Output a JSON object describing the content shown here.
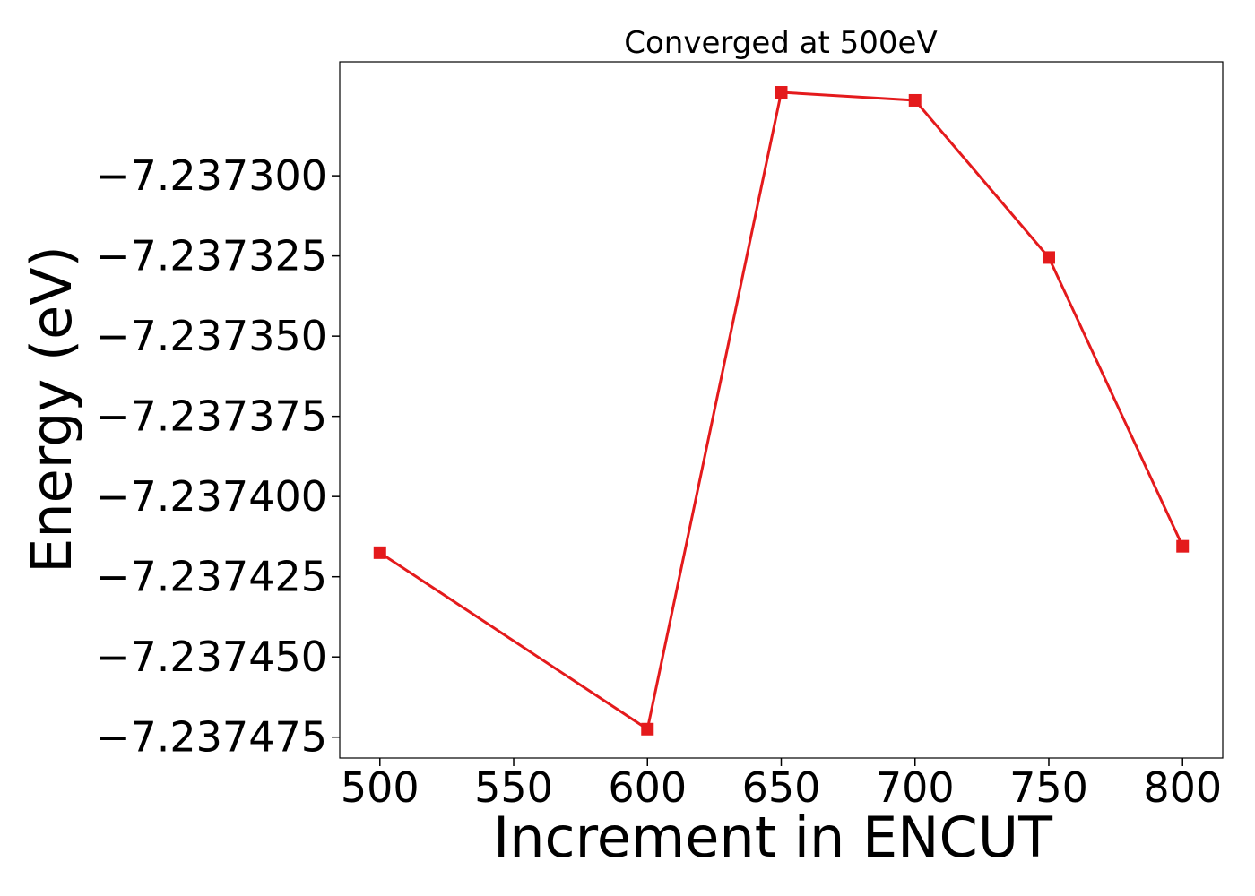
{
  "chart_data": {
    "type": "line",
    "title": "Converged at 500eV",
    "xlabel": "Increment in ENCUT",
    "ylabel": "Energy (eV)",
    "x": [
      500,
      600,
      650,
      700,
      750,
      800
    ],
    "series": [
      {
        "values": [
          -7.2374175,
          -7.2374725,
          -7.237274,
          -7.2372765,
          -7.2373255,
          -7.2374155
        ],
        "color": "#e41a1c",
        "marker": "square"
      }
    ],
    "xlim": [
      485,
      815
    ],
    "ylim": [
      -7.2374815,
      -7.2372645
    ],
    "xticks": [
      500,
      550,
      600,
      650,
      700,
      750,
      800
    ],
    "xtick_labels": [
      "500",
      "550",
      "600",
      "650",
      "700",
      "750",
      "800"
    ],
    "yticks": [
      -7.2373,
      -7.237325,
      -7.23735,
      -7.237375,
      -7.2374,
      -7.237425,
      -7.23745,
      -7.237475
    ],
    "ytick_labels": [
      "−7.237300",
      "−7.237325",
      "−7.237350",
      "−7.237375",
      "−7.237400",
      "−7.237425",
      "−7.237450",
      "−7.237475"
    ],
    "grid": false,
    "legend": "none"
  }
}
